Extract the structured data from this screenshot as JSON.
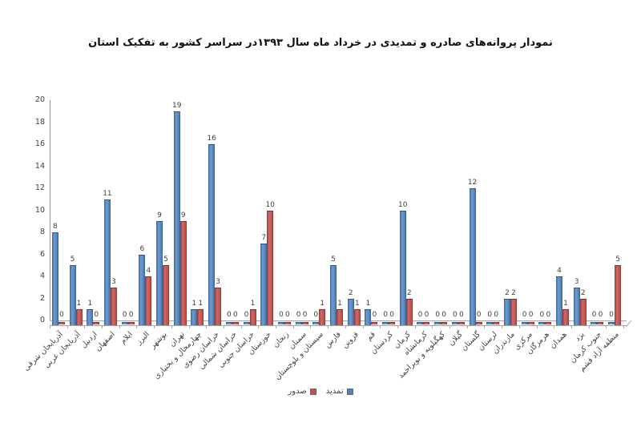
{
  "title": "نمودار پروانه‌های صادره و تمدیدی در خرداد ماه سال ۱۳۹۳در سراسر کشور به تفکیک استان",
  "legend": {
    "items": [
      {
        "label": "صدور",
        "color": "#C0504D"
      },
      {
        "label": "تمدید",
        "color": "#4F81BD"
      }
    ]
  },
  "chart_data": {
    "type": "bar",
    "title": "نمودار پروانه‌های صادره و تمدیدی در خرداد ماه سال ۱۳۹۳در سراسر کشور به تفکیک استان",
    "xlabel": "",
    "ylabel": "",
    "ylim": [
      0,
      20
    ],
    "yticks": [
      0,
      2,
      4,
      6,
      8,
      10,
      12,
      14,
      16,
      18,
      20
    ],
    "grid": false,
    "legend_position": "bottom",
    "categories": [
      "آذربایجان شرقی",
      "آذربایجان غربی",
      "اردبیل",
      "اصفهان",
      "ایلام",
      "البرز",
      "بوشهر",
      "تهران",
      "چهارمحال و بختیاری",
      "خراسان رضوی",
      "خراسان شمالی",
      "خراسان جنوبی",
      "خوزستان",
      "زنجان",
      "سمنان",
      "سیستان و بلوچستان",
      "فارس",
      "قزوین",
      "قم",
      "کردستان",
      "کرمان",
      "کرمانشاه",
      "کهگیلویه و بویراحمد",
      "گیلان",
      "گلستان",
      "لرستان",
      "مازندران",
      "مرکزی",
      "هرمزگان",
      "همدان",
      "یزد",
      "جنوب کرمان",
      "منطقه آزاد قشم"
    ],
    "series": [
      {
        "name": "تمدید",
        "color": "#4F81BD",
        "values": [
          8,
          5,
          1,
          11,
          0,
          6,
          9,
          19,
          1,
          16,
          0,
          0,
          7,
          0,
          0,
          0,
          5,
          2,
          1,
          0,
          10,
          0,
          0,
          0,
          12,
          0,
          2,
          0,
          0,
          4,
          3,
          0,
          0
        ]
      },
      {
        "name": "صدور",
        "color": "#C0504D",
        "values": [
          0,
          1,
          0,
          3,
          0,
          4,
          5,
          9,
          1,
          3,
          0,
          1,
          10,
          0,
          0,
          1,
          1,
          1,
          0,
          0,
          2,
          0,
          0,
          0,
          0,
          0,
          2,
          0,
          0,
          1,
          2,
          0,
          5
        ]
      }
    ]
  }
}
